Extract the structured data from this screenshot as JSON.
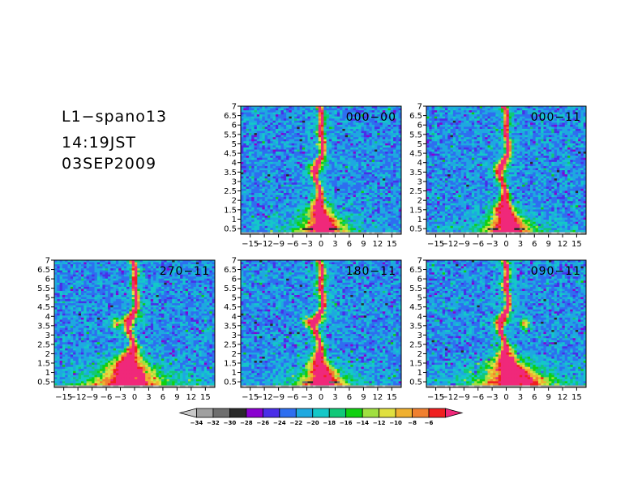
{
  "header": {
    "case_name": "L1−spano13",
    "time": "14:19JST",
    "date": "03SEP2009"
  },
  "colors": {
    "background": "#ffffff",
    "frame": "#000000",
    "field_background": "#3aa7d8"
  },
  "chart_data": {
    "type": "heatmap",
    "axes": {
      "x": {
        "range": [
          -17,
          17
        ],
        "ticks": [
          -15,
          -12,
          -9,
          -6,
          -3,
          0,
          3,
          6,
          9,
          12,
          15
        ],
        "tick_labels": [
          "−15",
          "−12",
          "−9",
          "−6",
          "−3",
          "0",
          "3",
          "6",
          "9",
          "12",
          "15"
        ]
      },
      "y": {
        "range": [
          0.2,
          7
        ],
        "ticks": [
          0.5,
          1,
          1.5,
          2,
          2.5,
          3,
          3.5,
          4,
          4.5,
          5,
          5.5,
          6,
          6.5,
          7
        ],
        "tick_labels": [
          "0.5",
          "1",
          "1.5",
          "2",
          "2.5",
          "3",
          "3.5",
          "4",
          "4.5",
          "5",
          "5.5",
          "6",
          "6.5",
          "7"
        ]
      }
    },
    "colorbar": {
      "levels": [
        -34,
        -32,
        -30,
        -28,
        -26,
        -24,
        -22,
        -20,
        -18,
        -16,
        -14,
        -12,
        -10,
        -8,
        -6
      ],
      "level_labels": [
        "−34",
        "−32",
        "−30",
        "−28",
        "−26",
        "−24",
        "−22",
        "−20",
        "−18",
        "−16",
        "−14",
        "−12",
        "−10",
        "−8",
        "−6"
      ],
      "colors": [
        "#c8c8c8",
        "#a0a0a0",
        "#6e6e6e",
        "#2a2a2a",
        "#8a00d0",
        "#4a2ee8",
        "#2e6ef0",
        "#1ea8e0",
        "#14c8c8",
        "#10c878",
        "#10d010",
        "#a0e040",
        "#e0e040",
        "#f0b030",
        "#f08030",
        "#f02020",
        "#f0287a"
      ]
    },
    "panels": [
      {
        "label": "000−00",
        "pattern": "narrow",
        "clutter": "moderate",
        "blob": null
      },
      {
        "label": "000−11",
        "pattern": "narrow",
        "clutter": "strong",
        "blob": null
      },
      {
        "label": "270−11",
        "pattern": "wide-left",
        "clutter": "none",
        "blob": {
          "x": -4,
          "y": 3.6
        }
      },
      {
        "label": "180−11",
        "pattern": "narrow",
        "clutter": "strong",
        "blob": {
          "x": -2.5,
          "y": 3.7
        }
      },
      {
        "label": "090−11",
        "pattern": "wide-right",
        "clutter": "none",
        "blob": {
          "x": 4,
          "y": 3.6
        }
      }
    ]
  }
}
